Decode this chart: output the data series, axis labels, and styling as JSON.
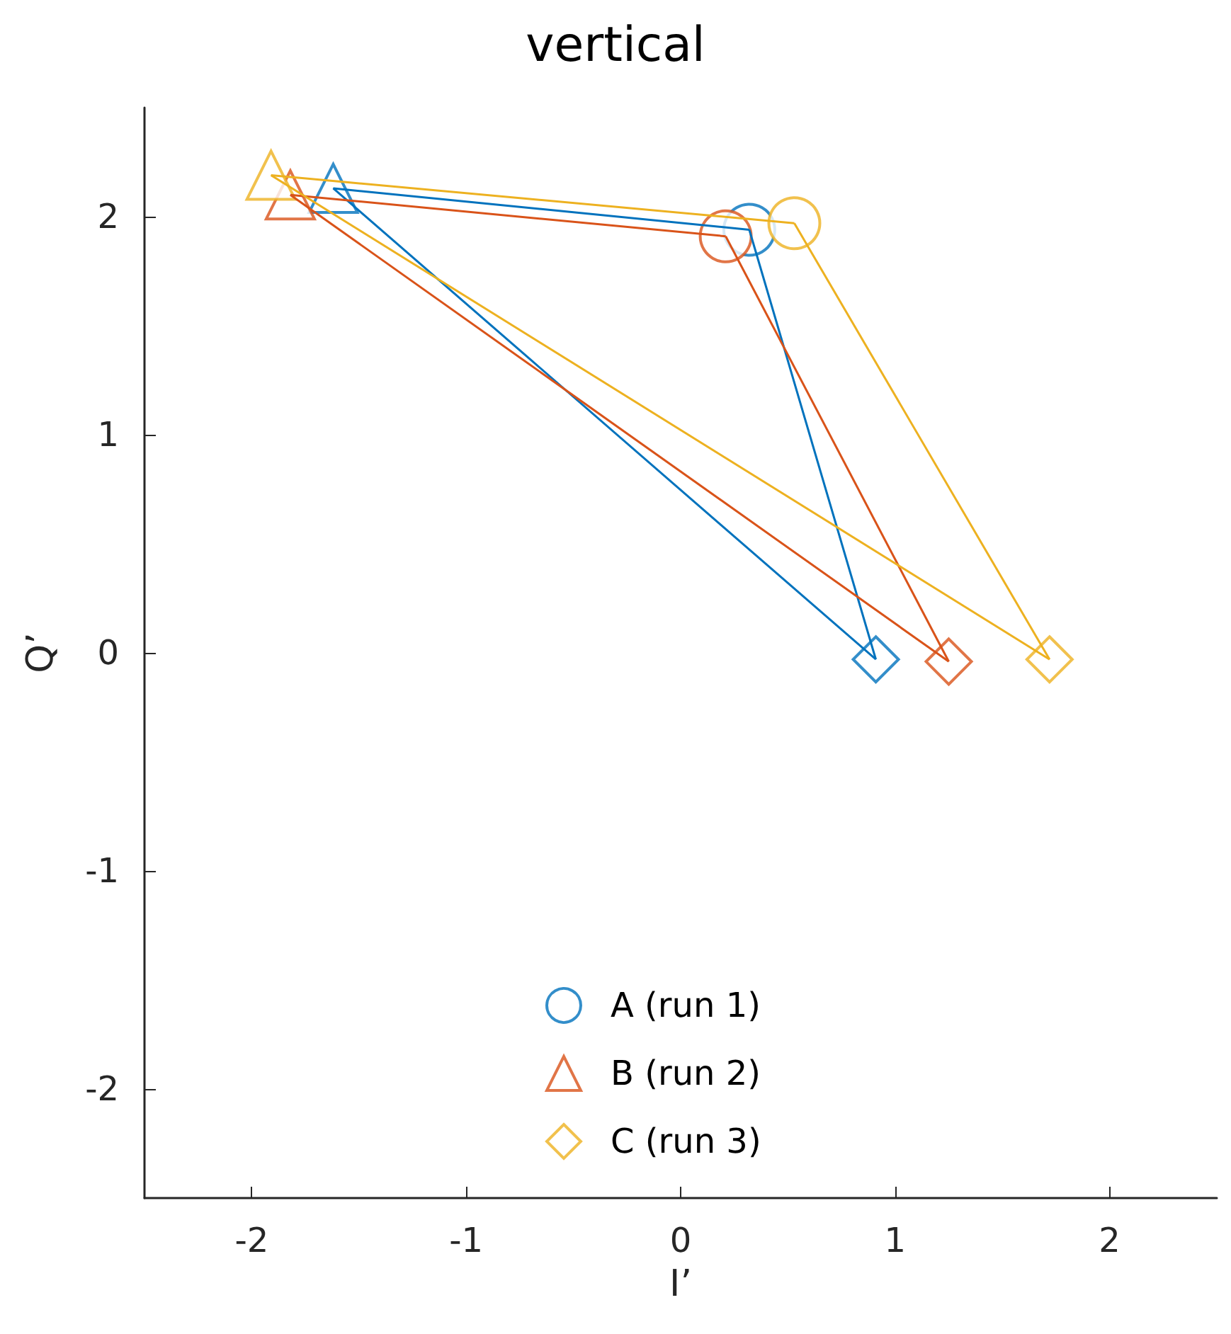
{
  "chart_data": {
    "type": "line",
    "title": "vertical",
    "xlabel": "I’",
    "ylabel": "Q’",
    "xlim": [
      -2.5,
      2.5
    ],
    "xticks": [
      -2,
      -1,
      0,
      1,
      2
    ],
    "ylim": [
      -2.5,
      2.5
    ],
    "yticks": [
      -2,
      -1,
      0,
      1,
      2
    ],
    "grid": false,
    "legend": "bottom",
    "series": [
      {
        "type": "line",
        "marker": "none",
        "color": "#0072bd",
        "x": [
          0.32,
          0.91
        ],
        "values": [
          1.94,
          -0.03
        ]
      },
      {
        "type": "line",
        "marker": "none",
        "color": "#0072bd",
        "x": [
          -1.62,
          0.91
        ],
        "values": [
          2.13,
          -0.03
        ]
      },
      {
        "type": "line",
        "marker": "none",
        "color": "#0072bd",
        "x": [
          -1.62,
          0.32
        ],
        "values": [
          2.13,
          1.94
        ]
      },
      {
        "type": "line",
        "marker": "none",
        "color": "#d95319",
        "x": [
          0.21,
          1.25
        ],
        "values": [
          1.91,
          -0.04
        ]
      },
      {
        "type": "line",
        "marker": "none",
        "color": "#d95319",
        "x": [
          -1.82,
          1.25
        ],
        "values": [
          2.1,
          -0.04
        ]
      },
      {
        "type": "line",
        "marker": "none",
        "color": "#d95319",
        "x": [
          -1.82,
          0.21
        ],
        "values": [
          2.1,
          1.91
        ]
      },
      {
        "type": "line",
        "marker": "none",
        "color": "#edb120",
        "x": [
          0.53,
          1.72
        ],
        "values": [
          1.97,
          -0.03
        ]
      },
      {
        "type": "line",
        "marker": "none",
        "color": "#edb120",
        "x": [
          -1.91,
          1.72
        ],
        "values": [
          2.19,
          -0.03
        ]
      },
      {
        "type": "line",
        "marker": "none",
        "color": "#edb120",
        "x": [
          -1.91,
          0.53
        ],
        "values": [
          2.19,
          1.97
        ]
      },
      {
        "type": "scatter",
        "name": "A (run 1)",
        "marker": "circle",
        "color": "#0072bd",
        "colors": [
          "#0072bd",
          "#d95319",
          "#edb120"
        ],
        "x": [
          0.32,
          0.21,
          0.53
        ],
        "values": [
          1.94,
          1.91,
          1.97
        ]
      },
      {
        "type": "scatter",
        "name": "B (run 2)",
        "marker": "triangle",
        "color": "#d95319",
        "colors": [
          "#0072bd",
          "#d95319",
          "#edb120"
        ],
        "x": [
          -1.62,
          -1.82,
          -1.91
        ],
        "values": [
          2.13,
          2.1,
          2.19
        ]
      },
      {
        "type": "scatter",
        "name": "C (run 3)",
        "marker": "diamond",
        "color": "#edb120",
        "colors": [
          "#0072bd",
          "#d95319",
          "#edb120"
        ],
        "x": [
          0.91,
          1.25,
          1.72
        ],
        "values": [
          -0.03,
          -0.04,
          -0.03
        ]
      }
    ]
  }
}
